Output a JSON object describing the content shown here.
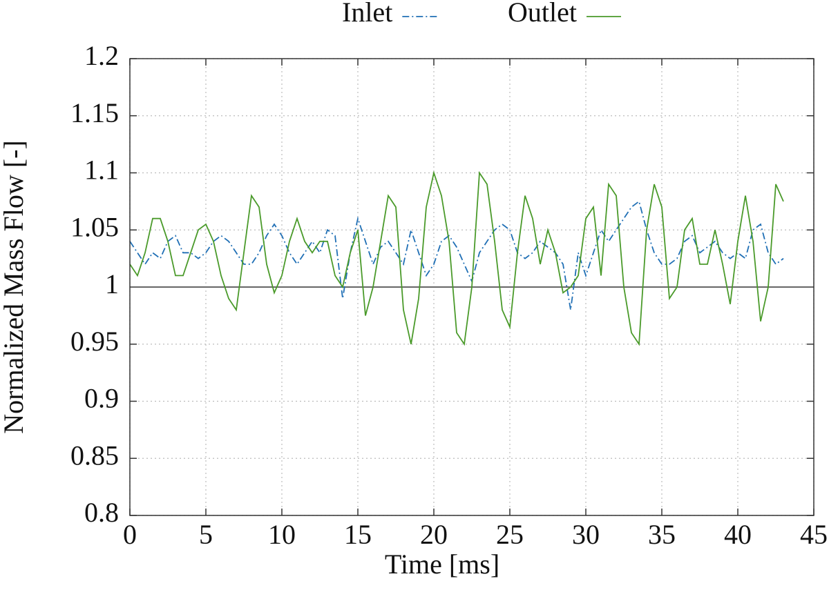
{
  "chart_data": {
    "type": "line",
    "xlabel": "Time [ms]",
    "ylabel": "Normalized Mass Flow [-]",
    "x": [
      0,
      0.5,
      1,
      1.5,
      2,
      2.5,
      3,
      3.5,
      4,
      4.5,
      5,
      5.5,
      6,
      6.5,
      7,
      7.5,
      8,
      8.5,
      9,
      9.5,
      10,
      10.5,
      11,
      11.5,
      12,
      12.5,
      13,
      13.5,
      14,
      14.5,
      15,
      15.5,
      16,
      16.5,
      17,
      17.5,
      18,
      18.5,
      19,
      19.5,
      20,
      20.5,
      21,
      21.5,
      22,
      22.5,
      23,
      23.5,
      24,
      24.5,
      25,
      25.5,
      26,
      26.5,
      27,
      27.5,
      28,
      28.5,
      29,
      29.5,
      30,
      30.5,
      31,
      31.5,
      32,
      32.5,
      33,
      33.5,
      34,
      34.5,
      35,
      35.5,
      36,
      36.5,
      37,
      37.5,
      38,
      38.5,
      39,
      39.5,
      40,
      40.5,
      41,
      41.5,
      42,
      42.5,
      43
    ],
    "series": [
      {
        "name": "Inlet",
        "color": "#1f6fb5",
        "dash": "dashdot",
        "values": [
          1.04,
          1.03,
          1.02,
          1.03,
          1.025,
          1.04,
          1.045,
          1.03,
          1.03,
          1.025,
          1.03,
          1.04,
          1.045,
          1.04,
          1.03,
          1.02,
          1.02,
          1.03,
          1.045,
          1.055,
          1.045,
          1.03,
          1.02,
          1.03,
          1.04,
          1.03,
          1.05,
          1.045,
          0.99,
          1.03,
          1.06,
          1.04,
          1.02,
          1.035,
          1.04,
          1.03,
          1.02,
          1.05,
          1.03,
          1.01,
          1.02,
          1.04,
          1.045,
          1.035,
          1.02,
          1.005,
          1.03,
          1.04,
          1.05,
          1.055,
          1.05,
          1.03,
          1.025,
          1.03,
          1.04,
          1.035,
          1.03,
          1.02,
          0.98,
          1.03,
          1.01,
          1.03,
          1.05,
          1.04,
          1.05,
          1.06,
          1.07,
          1.075,
          1.05,
          1.03,
          1.02,
          1.02,
          1.025,
          1.04,
          1.045,
          1.03,
          1.035,
          1.04,
          1.03,
          1.025,
          1.03,
          1.025,
          1.05,
          1.055,
          1.03,
          1.02,
          1.025
        ]
      },
      {
        "name": "Outlet",
        "color": "#4a9a2a",
        "dash": "solid",
        "values": [
          1.02,
          1.01,
          1.03,
          1.06,
          1.06,
          1.04,
          1.01,
          1.01,
          1.03,
          1.05,
          1.055,
          1.04,
          1.01,
          0.99,
          0.98,
          1.03,
          1.08,
          1.07,
          1.02,
          0.995,
          1.01,
          1.04,
          1.06,
          1.04,
          1.03,
          1.04,
          1.04,
          1.01,
          1.0,
          1.03,
          1.05,
          0.975,
          1.0,
          1.04,
          1.08,
          1.07,
          0.98,
          0.95,
          0.99,
          1.07,
          1.1,
          1.08,
          1.04,
          0.96,
          0.95,
          1.0,
          1.1,
          1.09,
          1.04,
          0.98,
          0.965,
          1.03,
          1.08,
          1.06,
          1.02,
          1.05,
          1.03,
          0.995,
          1.0,
          1.01,
          1.06,
          1.07,
          1.01,
          1.09,
          1.08,
          1.0,
          0.96,
          0.95,
          1.05,
          1.09,
          1.07,
          0.99,
          1.0,
          1.05,
          1.06,
          1.02,
          1.02,
          1.05,
          1.02,
          0.985,
          1.04,
          1.08,
          1.04,
          0.97,
          1.0,
          1.09,
          1.075
        ]
      }
    ],
    "reference_line": 1,
    "xlim": [
      0,
      45
    ],
    "xticks": [
      0,
      5,
      10,
      15,
      20,
      25,
      30,
      35,
      40,
      45
    ],
    "ylim": [
      0.8,
      1.2
    ],
    "yticks": [
      0.8,
      0.85,
      0.9,
      0.95,
      1,
      1.05,
      1.1,
      1.15,
      1.2
    ],
    "grid": true,
    "legend": "top"
  }
}
